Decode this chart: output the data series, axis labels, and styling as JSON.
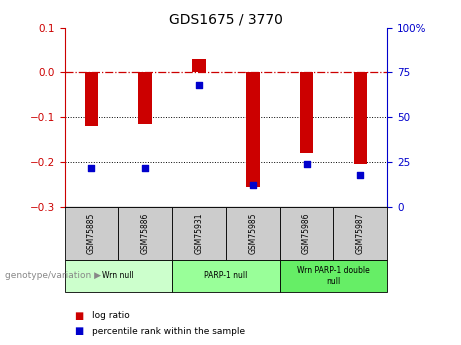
{
  "title": "GDS1675 / 3770",
  "samples": [
    "GSM75885",
    "GSM75886",
    "GSM75931",
    "GSM75985",
    "GSM75986",
    "GSM75987"
  ],
  "log_ratio": [
    -0.12,
    -0.115,
    0.03,
    -0.255,
    -0.18,
    -0.205
  ],
  "percentile_rank": [
    22,
    22,
    68,
    12,
    24,
    18
  ],
  "bar_color": "#cc0000",
  "dot_color": "#0000cc",
  "ylim_left": [
    -0.3,
    0.1
  ],
  "ylim_right": [
    0,
    100
  ],
  "yticks_left": [
    -0.3,
    -0.2,
    -0.1,
    0.0,
    0.1
  ],
  "yticks_right": [
    0,
    25,
    50,
    75,
    100
  ],
  "ytick_labels_right": [
    "0",
    "25",
    "50",
    "75",
    "100%"
  ],
  "groups": [
    {
      "label": "Wrn null",
      "start": 0,
      "end": 2,
      "color": "#ccffcc"
    },
    {
      "label": "PARP-1 null",
      "start": 2,
      "end": 4,
      "color": "#99ff99"
    },
    {
      "label": "Wrn PARP-1 double\nnull",
      "start": 4,
      "end": 6,
      "color": "#66ee66"
    }
  ],
  "legend_items": [
    {
      "color": "#cc0000",
      "label": "log ratio"
    },
    {
      "color": "#0000cc",
      "label": "percentile rank within the sample"
    }
  ],
  "hline_color": "#cc0000",
  "dotline_color": "#000000",
  "bar_width": 0.25,
  "dot_size": 25,
  "genotype_label": "genotype/variation",
  "gray_color": "#cccccc",
  "green_colors": [
    "#ccffcc",
    "#99ff99",
    "#66ee66"
  ]
}
